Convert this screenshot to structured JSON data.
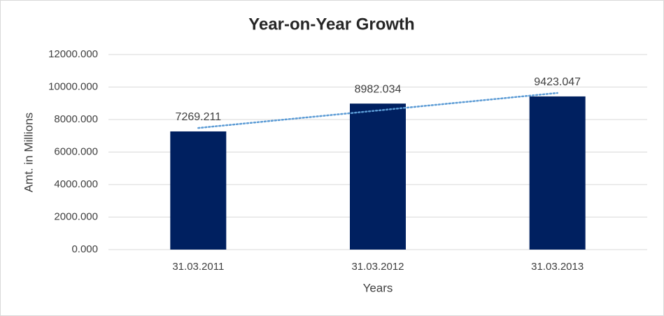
{
  "chart_data": {
    "type": "bar",
    "title": "Year-on-Year Growth",
    "x_label": "Years",
    "y_label": "Amt. in Millions",
    "categories": [
      "31.03.2011",
      "31.03.2012",
      "31.03.2013"
    ],
    "values": [
      7269.211,
      8982.034,
      9423.047
    ],
    "color": "#002060",
    "trendline": true,
    "trendline_color": "#5b9bd5",
    "ylim": [
      0,
      12000
    ],
    "yticks": [
      {
        "value": 0,
        "label": "0.000"
      },
      {
        "value": 2000,
        "label": "2000.000"
      },
      {
        "value": 4000,
        "label": "4000.000"
      },
      {
        "value": 6000,
        "label": "6000.000"
      },
      {
        "value": 8000,
        "label": "8000.000"
      },
      {
        "value": 10000,
        "label": "10000.000"
      },
      {
        "value": 12000,
        "label": "12000.000"
      }
    ],
    "grid": true
  }
}
